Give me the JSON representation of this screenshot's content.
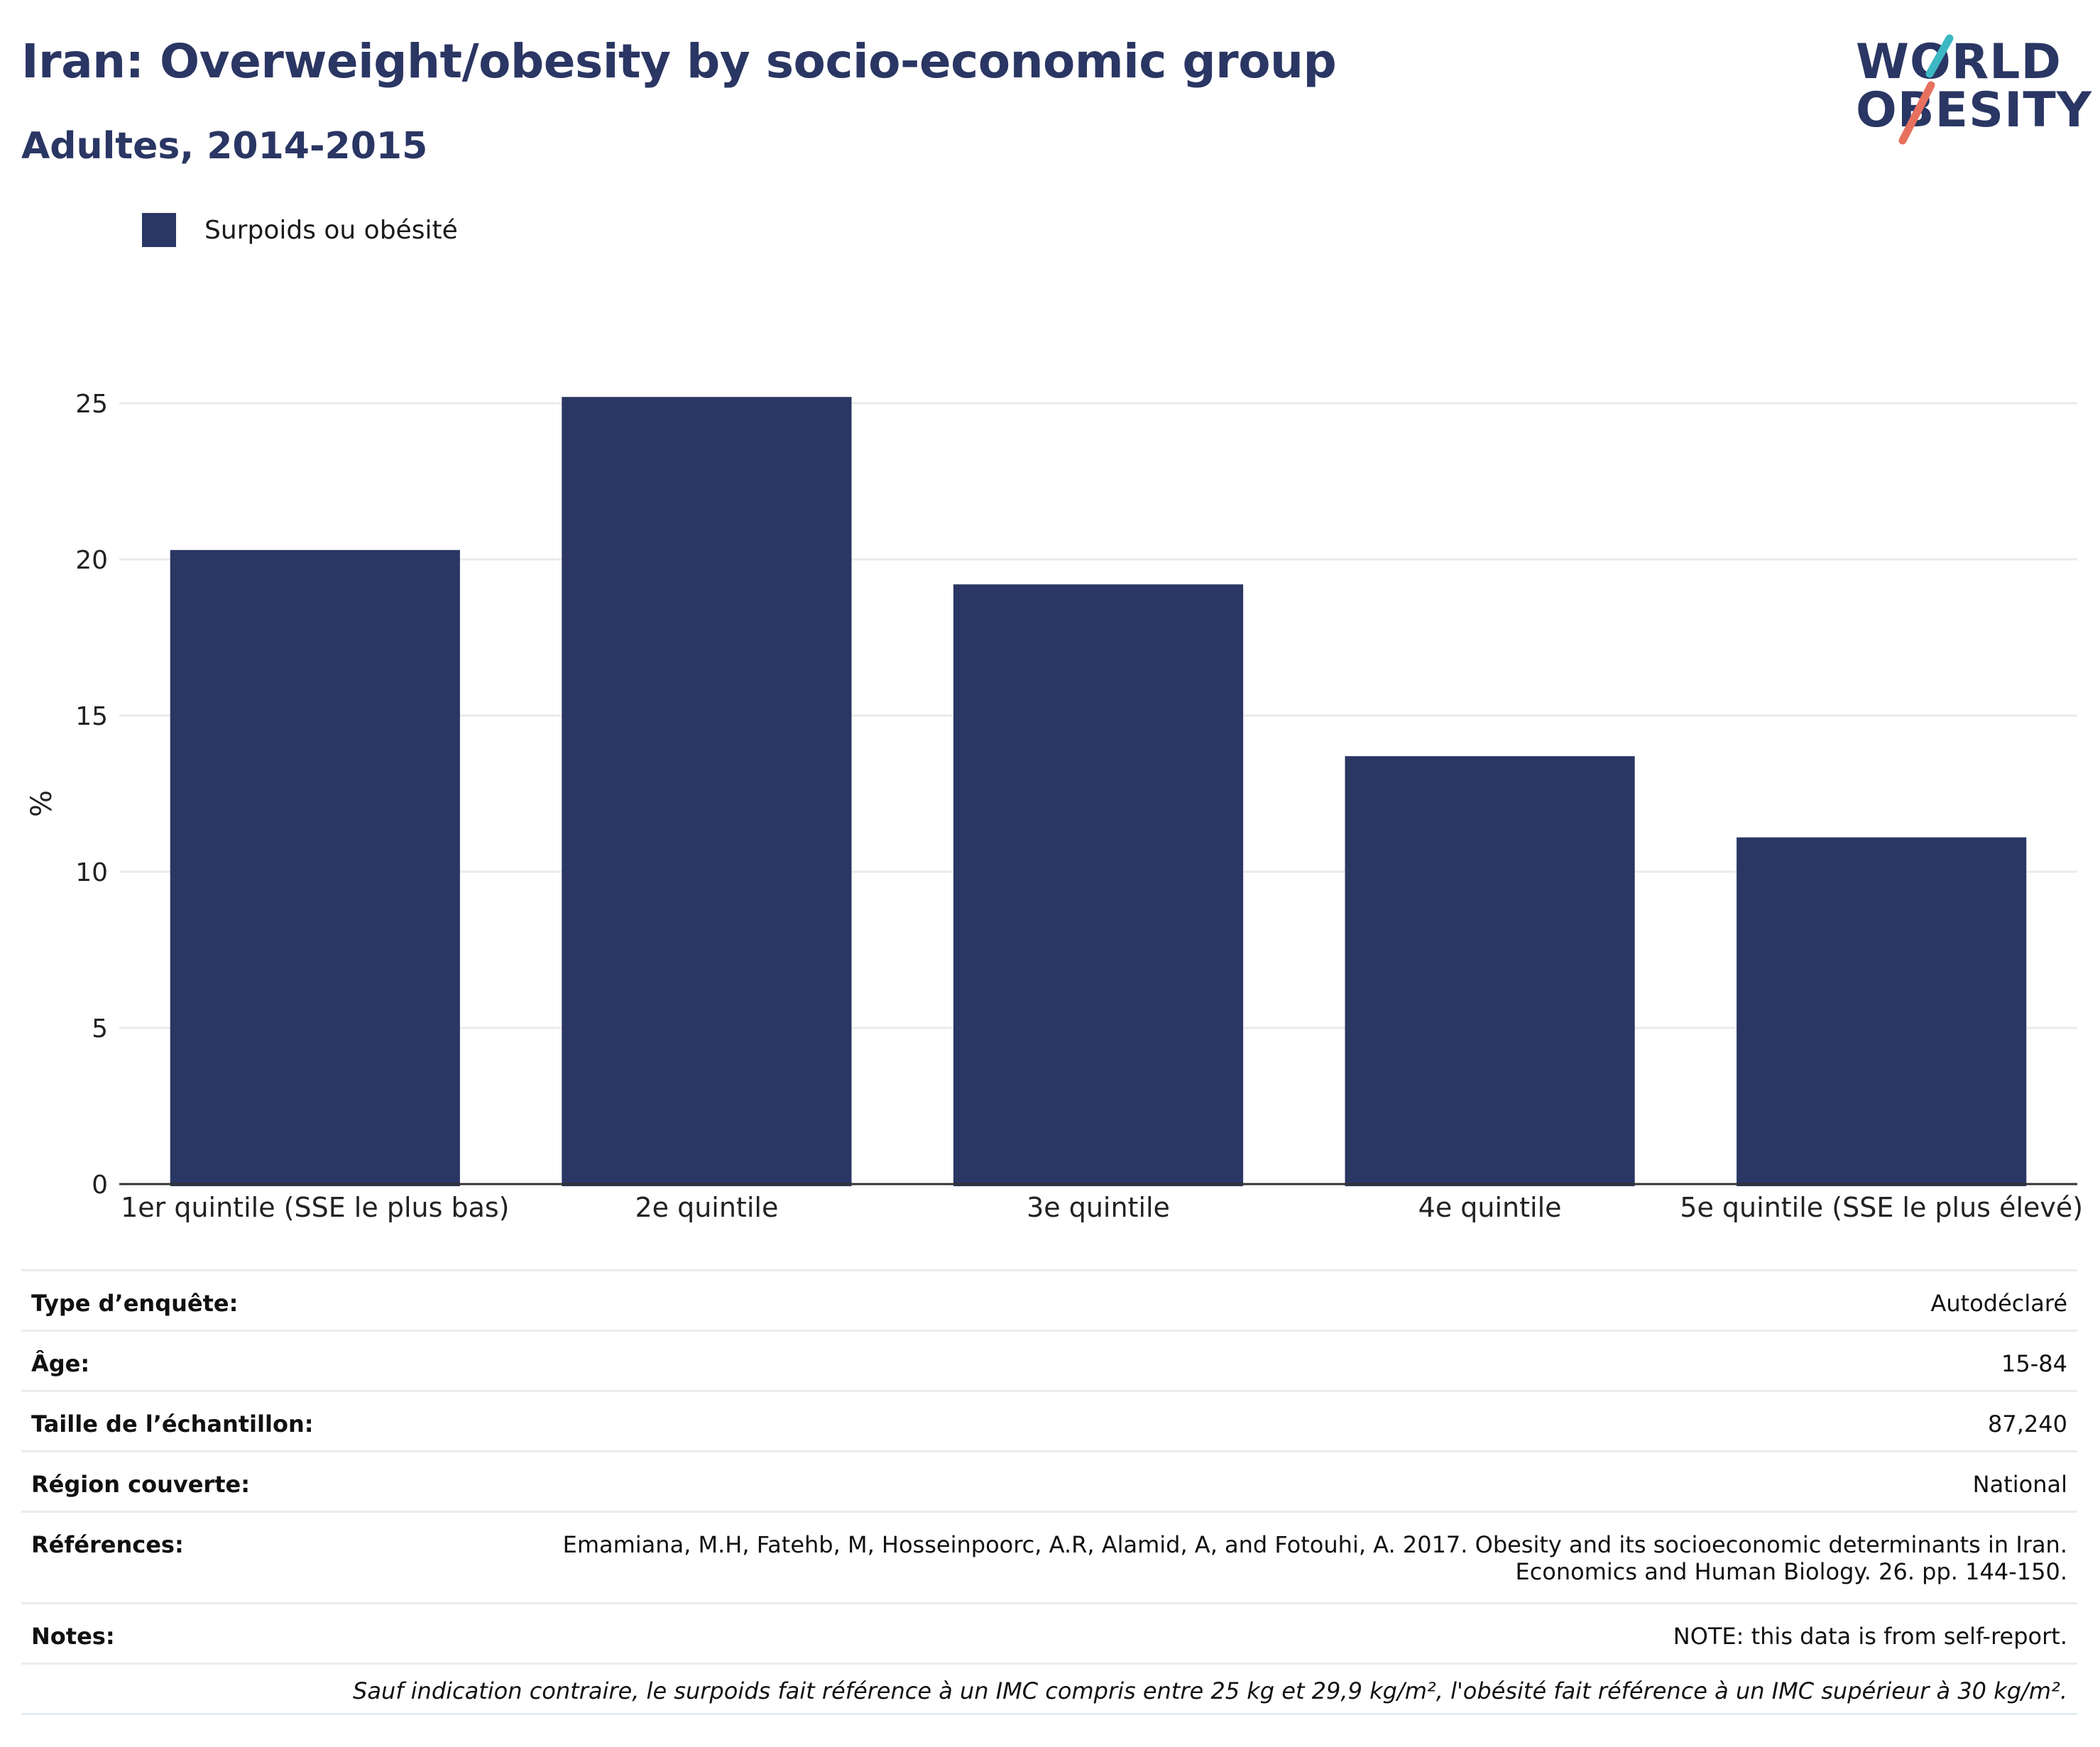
{
  "header": {
    "title": "Iran: Overweight/obesity by socio-economic group",
    "subtitle": "Adultes, 2014-2015"
  },
  "logo": {
    "line1": "WORLD",
    "line2": "OBESITY",
    "accent_teal": "#3bb8c3",
    "accent_coral": "#e8705f"
  },
  "legend": {
    "label": "Surpoids ou obésité",
    "color": "#2a3663"
  },
  "chart_data": {
    "type": "bar",
    "categories": [
      "1er quintile (SSE le plus bas)",
      "2e quintile",
      "3e quintile",
      "4e quintile",
      "5e quintile (SSE le plus élevé)"
    ],
    "series": [
      {
        "name": "Surpoids ou obésité",
        "values": [
          20.3,
          25.2,
          19.2,
          13.7,
          11.1
        ]
      }
    ],
    "ylabel": "%",
    "ylim": [
      0,
      25
    ],
    "yticks": [
      0,
      5,
      10,
      15,
      20,
      25
    ],
    "grid": true,
    "legend_position": "top-left",
    "bar_color": "#2a3663"
  },
  "info": {
    "rows": [
      {
        "key": "Type d’enquête:",
        "value": "Autodéclaré"
      },
      {
        "key": "Âge:",
        "value": "15-84"
      },
      {
        "key": "Taille de l’échantillon:",
        "value": "87,240"
      },
      {
        "key": "Région couverte:",
        "value": "National"
      }
    ],
    "references": {
      "key": "Références:",
      "line1": "Emamiana, M.H, Fatehb, M, Hosseinpoorc, A.R, Alamid, A, and Fotouhi, A. 2017. Obesity and its socioeconomic determinants in Iran.",
      "line2": "Economics and Human Biology. 26. pp. 144-150."
    },
    "notes": {
      "key": "Notes:",
      "value": "NOTE: this data is from self-report."
    },
    "footnote": "Sauf indication contraire, le surpoids fait référence à un IMC compris entre 25 kg et 29,9 kg/m², l'obésité fait référence à un IMC supérieur à 30 kg/m²."
  }
}
